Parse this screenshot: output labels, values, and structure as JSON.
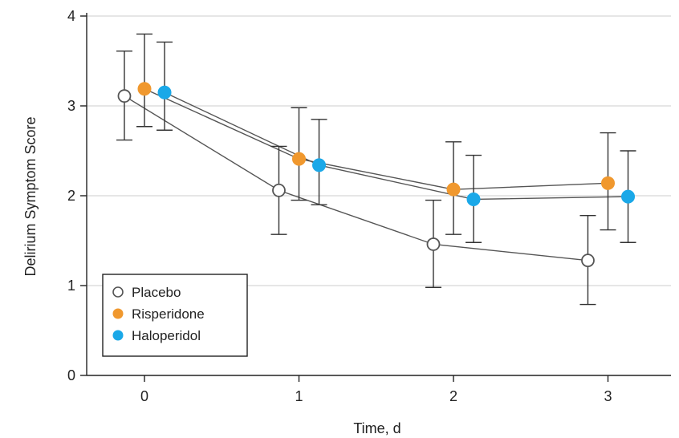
{
  "chart_data": {
    "type": "line",
    "xlabel": "Time, d",
    "ylabel": "Delirium Symptom Score",
    "x_ticks": [
      "0",
      "1",
      "2",
      "3"
    ],
    "y_ticks": [
      "0",
      "1",
      "2",
      "3",
      "4"
    ],
    "ylim": [
      0,
      4
    ],
    "grid": "horizontal",
    "legend_position": "bottom-left",
    "series": [
      {
        "name": "Placebo",
        "color": "#ffffff",
        "stroke": "#555555",
        "marker": "open-circle",
        "x_offset": -0.13,
        "x": [
          0,
          1,
          2,
          3
        ],
        "y": [
          3.11,
          2.06,
          1.46,
          1.28
        ],
        "ci_low": [
          2.62,
          1.57,
          0.98,
          0.79
        ],
        "ci_high": [
          3.61,
          2.55,
          1.95,
          1.78
        ]
      },
      {
        "name": "Risperidone",
        "color": "#f0982e",
        "stroke": "#f0982e",
        "marker": "filled-circle",
        "x_offset": 0.0,
        "x": [
          0,
          1,
          2,
          3
        ],
        "y": [
          3.19,
          2.41,
          2.07,
          2.14
        ],
        "ci_low": [
          2.77,
          1.95,
          1.57,
          1.62
        ],
        "ci_high": [
          3.8,
          2.98,
          2.6,
          2.7
        ]
      },
      {
        "name": "Haloperidol",
        "color": "#1aa8e8",
        "stroke": "#1aa8e8",
        "marker": "filled-circle",
        "x_offset": 0.13,
        "x": [
          0,
          1,
          2,
          3
        ],
        "y": [
          3.15,
          2.34,
          1.96,
          1.99
        ],
        "ci_low": [
          2.73,
          1.9,
          1.48,
          1.48
        ],
        "ci_high": [
          3.71,
          2.85,
          2.45,
          2.5
        ]
      }
    ]
  }
}
